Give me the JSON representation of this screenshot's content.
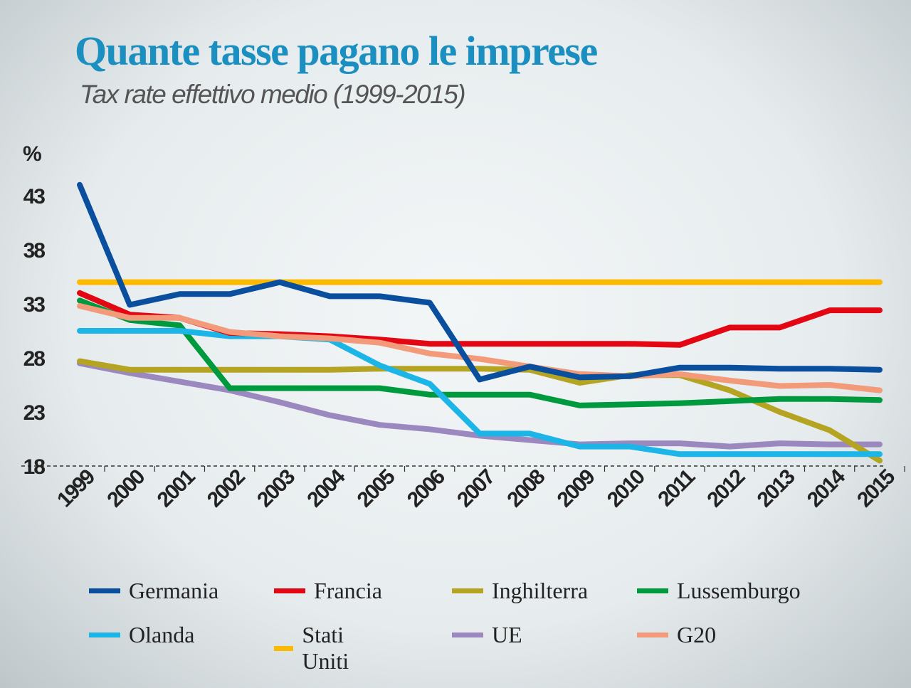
{
  "chart_data": {
    "type": "line",
    "title": "Quante tasse pagano le imprese",
    "subtitle": "Tax rate effettivo medio (1999-2015)",
    "ylabel": "%",
    "xlabel": "",
    "ylim": [
      18,
      45
    ],
    "yticks": [
      "18",
      "23",
      "28",
      "33",
      "38",
      "43"
    ],
    "x": [
      "1999",
      "2000",
      "2001",
      "2002",
      "2003",
      "2004",
      "2005",
      "2006",
      "2007",
      "2008",
      "2009",
      "2010",
      "2011",
      "2012",
      "2013",
      "2014",
      "2015"
    ],
    "grid": false,
    "legend_position": "bottom",
    "series": [
      {
        "name": "Germania",
        "color": "#0a4f9e",
        "values": [
          44,
          32.9,
          33.9,
          33.9,
          35,
          33.7,
          33.7,
          33.1,
          26,
          27.2,
          26.2,
          26.3,
          27.1,
          27.1,
          27,
          27,
          26.9
        ]
      },
      {
        "name": "Francia",
        "color": "#e30613",
        "values": [
          34,
          32,
          31.7,
          30.3,
          30.2,
          30,
          29.7,
          29.3,
          29.3,
          29.3,
          29.3,
          29.3,
          29.2,
          30.8,
          30.8,
          32.4,
          32.4
        ]
      },
      {
        "name": "Inghilterra",
        "color": "#b5a422",
        "values": [
          27.7,
          26.9,
          26.9,
          26.9,
          26.9,
          26.9,
          27,
          27,
          27,
          26.9,
          25.7,
          26.4,
          26.4,
          25,
          23,
          21.3,
          18.5
        ]
      },
      {
        "name": "Lussemburgo",
        "color": "#009a3e",
        "values": [
          33.3,
          31.5,
          31,
          25.2,
          25.2,
          25.2,
          25.2,
          24.6,
          24.6,
          24.6,
          23.6,
          23.7,
          23.8,
          24,
          24.2,
          24.2,
          24.1
        ]
      },
      {
        "name": "Olanda",
        "color": "#1cb5e8",
        "values": [
          30.5,
          30.5,
          30.5,
          30,
          30,
          29.7,
          27.3,
          25.6,
          21,
          21,
          19.8,
          19.8,
          19.1,
          19.1,
          19.1,
          19.1,
          19.1
        ]
      },
      {
        "name": "Stati Uniti",
        "color": "#fbb900",
        "values": [
          35,
          35,
          35,
          35,
          35,
          35,
          35,
          35,
          35,
          35,
          35,
          35,
          35,
          35,
          35,
          35,
          35
        ]
      },
      {
        "name": "UE",
        "color": "#9a88bf",
        "values": [
          27.5,
          26.6,
          25.8,
          25,
          23.9,
          22.7,
          21.8,
          21.4,
          20.8,
          20.4,
          20,
          20.1,
          20.1,
          19.8,
          20.1,
          20,
          20
        ]
      },
      {
        "name": "G20",
        "color": "#f39a7b",
        "values": [
          32.8,
          31.7,
          31.7,
          30.4,
          30,
          29.8,
          29.4,
          28.4,
          27.9,
          27.2,
          26.5,
          26.3,
          26.5,
          25.9,
          25.4,
          25.5,
          25
        ]
      }
    ]
  },
  "colors": {
    "title": "#1a8fc0"
  }
}
